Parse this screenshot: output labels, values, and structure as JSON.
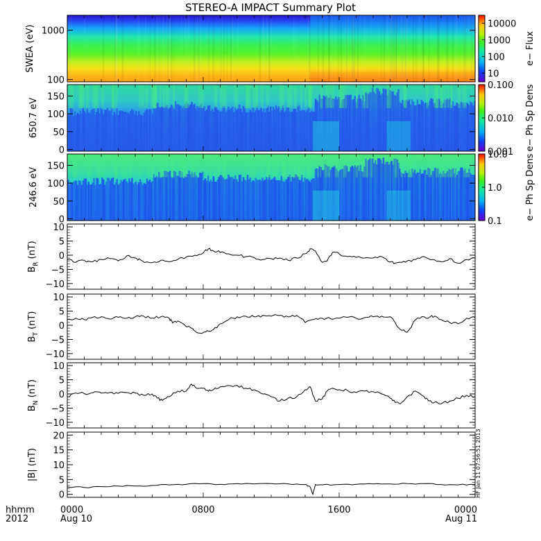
{
  "chart_data": {
    "type": "line",
    "title": "STEREO-A IMPACT Summary Plot",
    "x_axis": {
      "label_top": "hhmm",
      "label_bottom": "2012",
      "ticks": [
        {
          "hours": 0,
          "label": "0000",
          "sublabel": "Aug 10"
        },
        {
          "hours": 8,
          "label": "0800",
          "sublabel": ""
        },
        {
          "hours": 16,
          "label": "1600",
          "sublabel": ""
        },
        {
          "hours": 24,
          "label": "0000",
          "sublabel": "Aug 11"
        }
      ]
    },
    "spectrograms": [
      {
        "id": "swea",
        "ylabel": "SWEA (eV)",
        "yscale": "log",
        "ylim": [
          90,
          2000
        ],
        "yticks": [
          {
            "v": 1000,
            "l": "1000"
          },
          {
            "v": 100,
            "l": "100"
          }
        ],
        "colorbar": {
          "label": "e− Flux",
          "scale": "log",
          "range": [
            3,
            30000
          ],
          "ticks": [
            {
              "v": 10000,
              "l": "10000"
            },
            {
              "v": 1000,
              "l": "1000"
            },
            {
              "v": 100,
              "l": "100"
            },
            {
              "v": 10,
              "l": "10"
            }
          ]
        }
      },
      {
        "id": "pad650",
        "ylabel": "650.7 eV",
        "yscale": "linear",
        "ylim": [
          -5,
          182
        ],
        "yticks": [
          {
            "v": 150,
            "l": "150"
          },
          {
            "v": 100,
            "l": "100"
          },
          {
            "v": 50,
            "l": "50"
          },
          {
            "v": 0,
            "l": "0"
          }
        ],
        "colorbar": {
          "label": "e− Ph Sp Dens",
          "scale": "log",
          "range": [
            0.001,
            0.1
          ],
          "ticks": [
            {
              "v": 0.1,
              "l": "0.100"
            },
            {
              "v": 0.01,
              "l": "0.010"
            },
            {
              "v": 0.001,
              "l": "0.001"
            }
          ]
        }
      },
      {
        "id": "pad246",
        "ylabel": "246.6 eV",
        "yscale": "linear",
        "ylim": [
          -5,
          182
        ],
        "yticks": [
          {
            "v": 150,
            "l": "150"
          },
          {
            "v": 100,
            "l": "100"
          },
          {
            "v": 50,
            "l": "50"
          },
          {
            "v": 0,
            "l": "0"
          }
        ],
        "colorbar": {
          "label": "e− Ph Sp Dens",
          "scale": "log",
          "range": [
            0.1,
            10
          ],
          "ticks": [
            {
              "v": 10,
              "l": "10.0"
            },
            {
              "v": 1,
              "l": "1.0"
            },
            {
              "v": 0.1,
              "l": "0.1"
            }
          ]
        }
      }
    ],
    "line_panels": [
      {
        "id": "br",
        "ylabel": "B",
        "ysub": "R",
        "yunit": "(nT)",
        "ylim": [
          -12,
          11
        ],
        "yticks": [
          {
            "v": 10,
            "l": "10"
          },
          {
            "v": 5,
            "l": "5"
          },
          {
            "v": 0,
            "l": "0"
          },
          {
            "v": -5,
            "l": "−5"
          },
          {
            "v": -10,
            "l": "−10"
          }
        ],
        "x": [
          0,
          0.5,
          1,
          1.5,
          2,
          2.5,
          3,
          3.5,
          4,
          4.3,
          4.6,
          5,
          5.5,
          6,
          6.5,
          7,
          7.5,
          8,
          8.3,
          8.6,
          9,
          9.5,
          10,
          10.5,
          11,
          11.5,
          12,
          12.5,
          13,
          13.5,
          14,
          14.3,
          14.6,
          15,
          15.3,
          15.6,
          16,
          16.5,
          17,
          17.5,
          18,
          18.5,
          19,
          19.3,
          19.6,
          20,
          20.5,
          21,
          21.5,
          22,
          22.5,
          23,
          23.5,
          24
        ],
        "y": [
          -1.5,
          -2.5,
          -1.8,
          -2.3,
          -1.5,
          -1.2,
          -2,
          -0.2,
          -1,
          -1.6,
          -2.5,
          -2.6,
          -1.8,
          -2.3,
          -1.5,
          -0.6,
          0,
          0.8,
          2.2,
          1.5,
          1,
          0.5,
          0,
          -0.5,
          -0.8,
          -1.5,
          -1.2,
          -1,
          -1.8,
          -1,
          0.5,
          2.3,
          1.5,
          -2.5,
          -2,
          1,
          0.5,
          -0.5,
          -0.8,
          -1,
          -1,
          -0.5,
          -2.4,
          -2.8,
          -2.5,
          -2,
          -1.5,
          -0.5,
          -1.5,
          -2.3,
          -1.2,
          -2.8,
          -1.5,
          -1
        ]
      },
      {
        "id": "bt",
        "ylabel": "B",
        "ysub": "T",
        "yunit": "(nT)",
        "ylim": [
          -12,
          11
        ],
        "yticks": [
          {
            "v": 10,
            "l": "10"
          },
          {
            "v": 5,
            "l": "5"
          },
          {
            "v": 0,
            "l": "0"
          },
          {
            "v": -5,
            "l": "−5"
          },
          {
            "v": -10,
            "l": "−10"
          }
        ],
        "x": [
          0,
          0.5,
          1,
          1.5,
          2,
          2.5,
          3,
          3.5,
          4,
          4.5,
          5,
          5.5,
          6,
          6.2,
          6.5,
          7,
          7.3,
          7.6,
          8,
          8.3,
          8.6,
          9,
          9.5,
          10,
          10.5,
          11,
          11.5,
          12,
          12.5,
          13,
          13.5,
          14,
          14.5,
          15,
          15.5,
          16,
          16.5,
          17,
          17.5,
          18,
          18.5,
          19,
          19.3,
          19.6,
          20,
          20.5,
          21,
          21.3,
          21.6,
          22,
          22.5,
          23,
          23.5,
          24
        ],
        "y": [
          2,
          2.5,
          2,
          2.8,
          3,
          2.2,
          2.8,
          2.5,
          3,
          3.2,
          2.5,
          3,
          2.5,
          0.8,
          1.5,
          -0.5,
          -1,
          -2.5,
          -2.6,
          -2,
          -1.5,
          0.5,
          2,
          3,
          3.2,
          3,
          3.5,
          3.2,
          3.5,
          3,
          3.5,
          1,
          2,
          2.5,
          2.3,
          2.5,
          2.8,
          2.5,
          2.7,
          3,
          3.2,
          3,
          1,
          -1.5,
          -2.5,
          2,
          3,
          2.8,
          3.2,
          2,
          1,
          0.5,
          2.5,
          2.8
        ]
      },
      {
        "id": "bn",
        "ylabel": "B",
        "ysub": "N",
        "yunit": "(nT)",
        "ylim": [
          -12,
          11
        ],
        "yticks": [
          {
            "v": 10,
            "l": "10"
          },
          {
            "v": 5,
            "l": "5"
          },
          {
            "v": 0,
            "l": "0"
          },
          {
            "v": -5,
            "l": "−5"
          },
          {
            "v": -10,
            "l": "−10"
          }
        ],
        "x": [
          0,
          0.5,
          1,
          1.5,
          2,
          2.5,
          3,
          3.5,
          4,
          4.5,
          5,
          5.3,
          5.6,
          6,
          6.5,
          7,
          7.3,
          7.6,
          8,
          8.3,
          8.6,
          9,
          9.5,
          10,
          10.5,
          11,
          11.5,
          12,
          12.5,
          13,
          13.5,
          14,
          14.3,
          14.6,
          15,
          15.3,
          15.6,
          16,
          16.5,
          17,
          17.5,
          18,
          18.5,
          19,
          19.3,
          19.6,
          20,
          20.5,
          21,
          21.3,
          21.6,
          22,
          22.5,
          23,
          23.5,
          24
        ],
        "y": [
          -1,
          0.3,
          0.1,
          0.4,
          0.3,
          0.5,
          0.2,
          0.5,
          0.3,
          -0.5,
          0,
          -1.5,
          -2.3,
          -1,
          1,
          1,
          3.5,
          2,
          2,
          1,
          1.5,
          2.5,
          3,
          3,
          2,
          1.5,
          0,
          -1,
          -2.5,
          -1.5,
          -1,
          1.5,
          2.5,
          -2.5,
          -1.8,
          1,
          2,
          1.5,
          1.2,
          0.5,
          1,
          0.8,
          0,
          -1.5,
          -3,
          -3.5,
          -1,
          1,
          -1,
          -2.5,
          -3,
          -3.5,
          -2.5,
          -1.5,
          -0.5,
          -1
        ]
      },
      {
        "id": "bmag",
        "ylabel": "|B|",
        "ysub": "",
        "yunit": "(nT)",
        "ylim": [
          -1,
          21
        ],
        "yticks": [
          {
            "v": 20,
            "l": "20"
          },
          {
            "v": 15,
            "l": "15"
          },
          {
            "v": 10,
            "l": "10"
          },
          {
            "v": 5,
            "l": "5"
          },
          {
            "v": 0,
            "l": "0"
          }
        ],
        "x": [
          0,
          1,
          2,
          3,
          4,
          5,
          6,
          7,
          8,
          9,
          10,
          11,
          12,
          13,
          14,
          14.3,
          14.45,
          14.6,
          15,
          16,
          17,
          18,
          19,
          20,
          21,
          22,
          23,
          24
        ],
        "y": [
          2.5,
          2.3,
          2.6,
          2.8,
          2.8,
          3,
          3.2,
          3.4,
          3.6,
          3.4,
          3.6,
          3.5,
          3.6,
          3.5,
          3.3,
          2.5,
          0,
          3.3,
          3.2,
          3.3,
          3.4,
          3.5,
          3.5,
          3.6,
          3.6,
          3.3,
          3.2,
          3.3
        ]
      }
    ],
    "stamp": "HF Jan 11 07:56:51 2013"
  }
}
